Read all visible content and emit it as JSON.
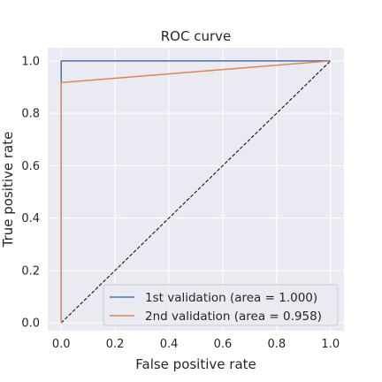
{
  "chart_data": {
    "type": "line",
    "title": "ROC curve",
    "xlabel": "False positive rate",
    "ylabel": "True positive rate",
    "xlim": [
      -0.05,
      1.05
    ],
    "ylim": [
      -0.03,
      1.05
    ],
    "xticks": [
      0.0,
      0.2,
      0.4,
      0.6,
      0.8,
      1.0
    ],
    "xtick_labels": [
      "0.0",
      "0.2",
      "0.4",
      "0.6",
      "0.8",
      "1.0"
    ],
    "yticks": [
      0.0,
      0.2,
      0.4,
      0.6,
      0.8,
      1.0
    ],
    "ytick_labels": [
      "0.0",
      "0.2",
      "0.4",
      "0.6",
      "0.8",
      "1.0"
    ],
    "grid": true,
    "legend_position": "lower-right",
    "series": [
      {
        "name": "1st validation (area = 1.000)",
        "color": "#4c72b0",
        "x": [
          0.0,
          0.0,
          1.0
        ],
        "y": [
          0.0,
          1.0,
          1.0
        ]
      },
      {
        "name": "2nd validation (area = 0.958)",
        "color": "#dd8452",
        "x": [
          0.0,
          0.0,
          1.0
        ],
        "y": [
          0.0,
          0.917,
          1.0
        ]
      }
    ],
    "diagonal": {
      "x": [
        0.0,
        1.0
      ],
      "y": [
        0.0,
        1.0
      ],
      "color": "#000000",
      "style": "dashed"
    }
  }
}
